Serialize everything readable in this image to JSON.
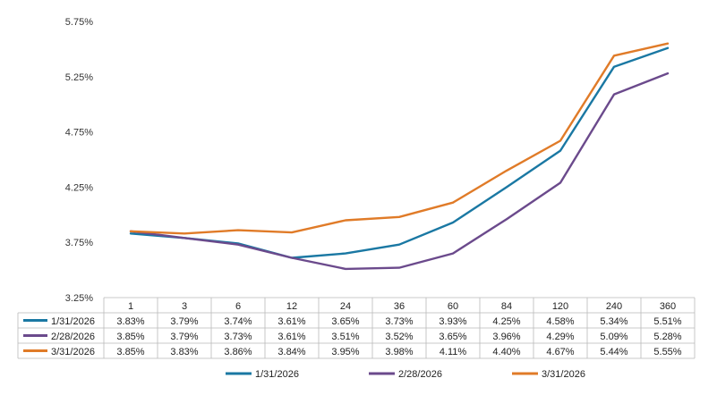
{
  "chart_data": {
    "type": "line",
    "title": "",
    "xlabel": "",
    "ylabel": "",
    "categories": [
      "1",
      "3",
      "6",
      "12",
      "24",
      "36",
      "60",
      "84",
      "120",
      "240",
      "360"
    ],
    "ylim": [
      3.25,
      5.75
    ],
    "y_ticks": [
      "3.25%",
      "3.75%",
      "4.25%",
      "4.75%",
      "5.25%",
      "5.75%"
    ],
    "y_tick_values": [
      3.25,
      3.75,
      4.25,
      4.75,
      5.25,
      5.75
    ],
    "grid": false,
    "legend_position": "bottom-center",
    "series": [
      {
        "name": "1/31/2026",
        "color": "#1a78a3",
        "values": [
          3.83,
          3.79,
          3.74,
          3.61,
          3.65,
          3.73,
          3.93,
          4.25,
          4.58,
          5.34,
          5.51
        ],
        "labels": [
          "3.83%",
          "3.79%",
          "3.74%",
          "3.61%",
          "3.65%",
          "3.73%",
          "3.93%",
          "4.25%",
          "4.58%",
          "5.34%",
          "5.51%"
        ]
      },
      {
        "name": "2/28/2026",
        "color": "#6b4a8c",
        "values": [
          3.85,
          3.79,
          3.73,
          3.61,
          3.51,
          3.52,
          3.65,
          3.96,
          4.29,
          5.09,
          5.28
        ],
        "labels": [
          "3.85%",
          "3.79%",
          "3.73%",
          "3.61%",
          "3.51%",
          "3.52%",
          "3.65%",
          "3.96%",
          "4.29%",
          "5.09%",
          "5.28%"
        ]
      },
      {
        "name": "3/31/2026",
        "color": "#e07b28",
        "values": [
          3.85,
          3.83,
          3.86,
          3.84,
          3.95,
          3.98,
          4.11,
          4.4,
          4.67,
          5.44,
          5.55
        ],
        "labels": [
          "3.85%",
          "3.83%",
          "3.86%",
          "3.84%",
          "3.95%",
          "3.98%",
          "4.11%",
          "4.40%",
          "4.67%",
          "5.44%",
          "5.55%"
        ]
      }
    ]
  }
}
